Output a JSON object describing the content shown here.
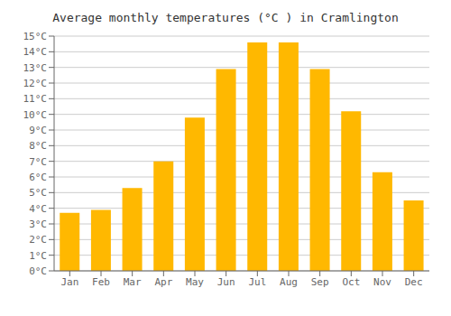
{
  "chart_data": {
    "type": "bar",
    "title": "Average monthly temperatures (°C ) in Cramlington",
    "categories": [
      "Jan",
      "Feb",
      "Mar",
      "Apr",
      "May",
      "Jun",
      "Jul",
      "Aug",
      "Sep",
      "Oct",
      "Nov",
      "Dec"
    ],
    "values": [
      3.7,
      3.9,
      5.3,
      7.0,
      9.8,
      12.9,
      14.6,
      14.6,
      12.9,
      10.2,
      6.3,
      4.5
    ],
    "color": "#FFB800",
    "ylim": [
      0,
      15
    ],
    "yticks": [
      {
        "value": 0,
        "label": "0°C"
      },
      {
        "value": 1,
        "label": "1°C"
      },
      {
        "value": 2,
        "label": "2°C"
      },
      {
        "value": 3,
        "label": "3°C"
      },
      {
        "value": 4,
        "label": "4°C"
      },
      {
        "value": 5,
        "label": "5°C"
      },
      {
        "value": 6,
        "label": "6°C"
      },
      {
        "value": 7,
        "label": "7°C"
      },
      {
        "value": 8,
        "label": "8°C"
      },
      {
        "value": 9,
        "label": "9°C"
      },
      {
        "value": 10,
        "label": "10°C"
      },
      {
        "value": 11,
        "label": "11°C"
      },
      {
        "value": 12,
        "label": "12°C"
      },
      {
        "value": 13,
        "label": "13°C"
      },
      {
        "value": 14,
        "label": "14°C"
      },
      {
        "value": 15,
        "label": "15°C"
      }
    ],
    "grid": true
  }
}
